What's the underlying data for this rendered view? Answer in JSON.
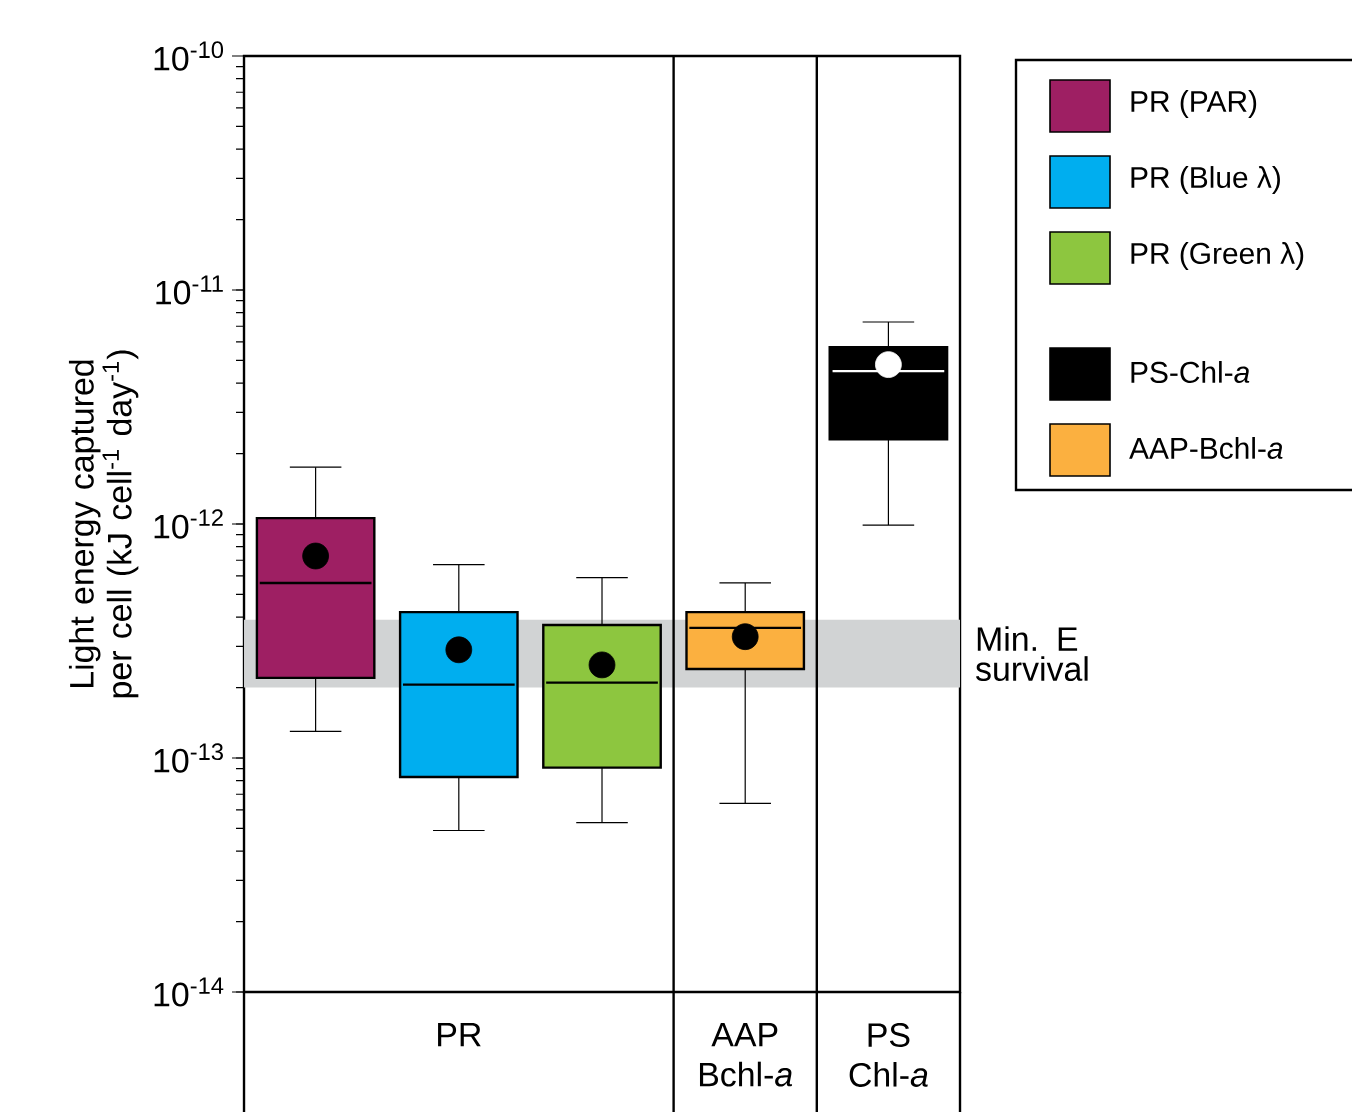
{
  "chart_data": {
    "type": "box",
    "ylabel": "Light energy captured per cell (kJ cell$^{-1}$ day$^{-1}$)",
    "categories": [
      null,
      "PR",
      null,
      "AAP Bchl-*a*",
      "PS Chl-*a*"
    ],
    "series": [
      {
        "name": "PR (PAR)",
        "color": "#9e1f63",
        "boxes": [
          {
            "low": 1.3e-13,
            "q1": 2.2e-13,
            "median": 5.6e-13,
            "q3": 1.06e-12,
            "high": 1.75e-12,
            "mean": 7.3e-13
          },
          null,
          null,
          null,
          null
        ]
      },
      {
        "name": "PR (Blue λ)",
        "color": "#00aeef",
        "boxes": [
          null,
          {
            "low": 4.9e-14,
            "q1": 8.3e-14,
            "median": 2.06e-13,
            "q3": 4.2e-13,
            "high": 6.7e-13,
            "mean": 2.9e-13
          },
          null,
          null,
          null
        ]
      },
      {
        "name": "PR (Green λ)",
        "color": "#8dc63f",
        "boxes": [
          null,
          null,
          {
            "low": 5.3e-14,
            "q1": 9.1e-14,
            "median": 2.1e-13,
            "q3": 3.7e-13,
            "high": 5.9e-13,
            "mean": 2.5e-13
          },
          null,
          null
        ]
      },
      {
        "name": "PS-Chl-*a*",
        "color": "#000000",
        "boxes": [
          null,
          null,
          null,
          null,
          {
            "low": 9.9e-13,
            "q1": 2.3e-12,
            "median": 4.5e-12,
            "q3": 5.7e-12,
            "high": 7.3e-12,
            "mean": 4.8e-12
          }
        ]
      },
      {
        "name": "AAP-Bchl-*a*",
        "color": "#fbb040",
        "boxes": [
          null,
          null,
          null,
          {
            "low": 6.4e-14,
            "q1": 2.4e-13,
            "median": 3.6e-13,
            "q3": 4.2e-13,
            "high": 5.6e-13,
            "mean": 3.3e-13
          },
          null
        ]
      }
    ],
    "bands": [
      {
        "axis": "y",
        "from": 2e-13,
        "to": 3.9e-13,
        "label": "Min. E survival",
        "color": "#d1d3d4"
      }
    ],
    "log": "y",
    "ylim": [
      1e-14,
      1e-10
    ],
    "yticks": [
      {
        "value": 1e-14,
        "label": "10$^{-14}$"
      },
      {
        "value": 1e-13,
        "label": "10$^{-13}$"
      },
      {
        "value": 1e-12,
        "label": "10$^{-12}$"
      },
      {
        "value": 1e-11,
        "label": "10$^{-11}$"
      },
      {
        "value": 1e-10,
        "label": "10$^{-10}$"
      }
    ],
    "legend": "right"
  }
}
